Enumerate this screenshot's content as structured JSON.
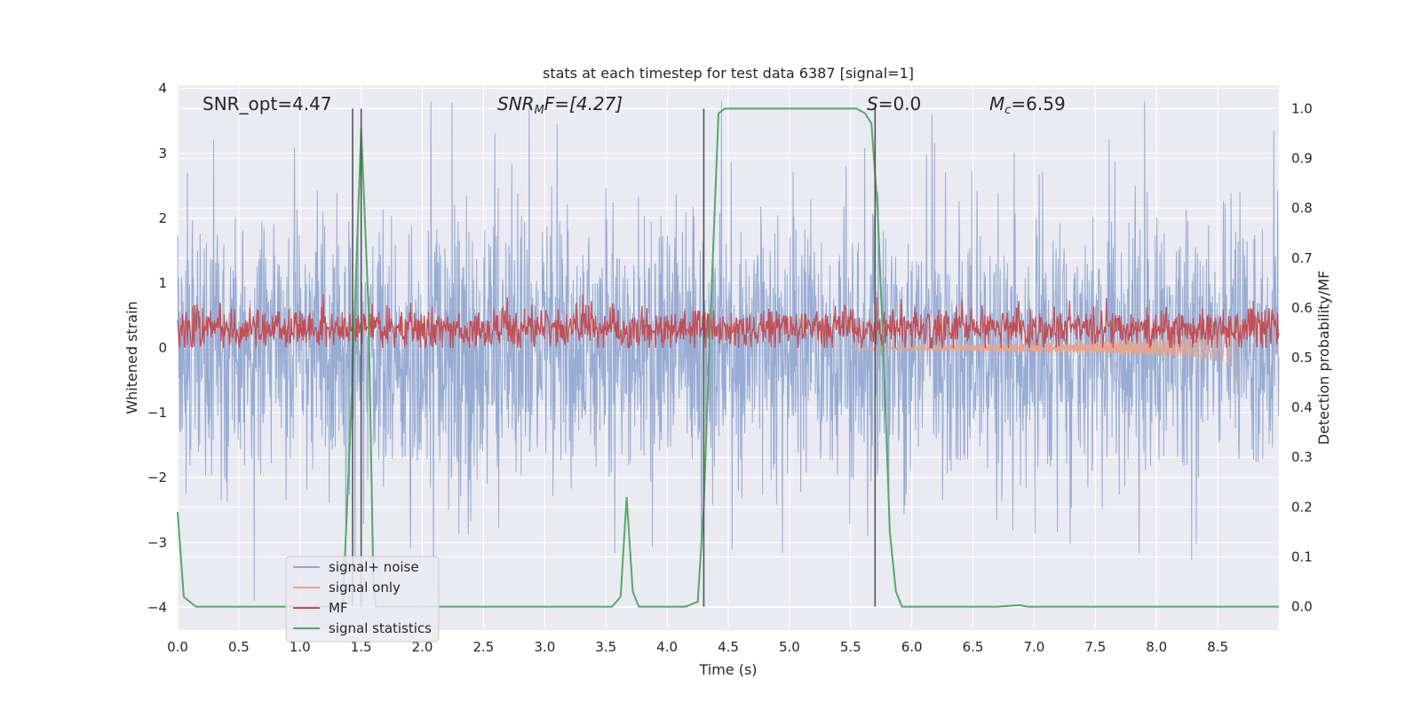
{
  "chart_data": {
    "type": "line",
    "title": "stats at each timestep for test data 6387 [signal=1]",
    "xlabel": "Time (s)",
    "ylabel_left": "Whitened strain",
    "ylabel_right": "Detection probability/MF",
    "xlim": [
      0.0,
      9.0
    ],
    "ylim_left": [
      -4.35,
      4.05
    ],
    "ylim_right": [
      -0.047,
      1.047
    ],
    "xticks": [
      "0.0",
      "0.5",
      "1.0",
      "1.5",
      "2.0",
      "2.5",
      "3.0",
      "3.5",
      "4.0",
      "4.5",
      "5.0",
      "5.5",
      "6.0",
      "6.5",
      "7.0",
      "7.5",
      "8.0",
      "8.5"
    ],
    "yticks_left": [
      "4",
      "3",
      "2",
      "1",
      "0",
      "−1",
      "−2",
      "−3",
      "−4"
    ],
    "yticks_right": [
      "1.0",
      "0.9",
      "0.8",
      "0.7",
      "0.6",
      "0.5",
      "0.4",
      "0.3",
      "0.2",
      "0.1",
      "0.0"
    ],
    "grid": true,
    "legend_position": "lower-left",
    "series": [
      {
        "name": "signal+ noise",
        "color": "#92a8d1",
        "axis": "left",
        "description": "whitened strain noise, amplitude roughly ±2 with spikes to ±3.8"
      },
      {
        "name": "signal only",
        "color": "#e8a58c",
        "axis": "left",
        "x": [
          5.5,
          6.0,
          6.5,
          7.0,
          7.5,
          8.0,
          8.3,
          8.5,
          8.62,
          8.66
        ],
        "envelope": [
          0.02,
          0.03,
          0.05,
          0.07,
          0.09,
          0.12,
          0.15,
          0.2,
          0.3,
          0.55
        ]
      },
      {
        "name": "MF",
        "color": "#c44e52",
        "axis": "left",
        "description": "matched filter output, band roughly 0 to 0.9"
      },
      {
        "name": "signal statistics",
        "color": "#55a868",
        "axis": "right",
        "x": [
          0.0,
          0.05,
          0.15,
          0.3,
          0.6,
          1.0,
          1.2,
          1.35,
          1.42,
          1.5,
          1.56,
          1.6,
          1.62,
          1.7,
          2.0,
          2.5,
          3.0,
          3.4,
          3.55,
          3.62,
          3.67,
          3.72,
          3.77,
          3.8,
          3.9,
          4.0,
          4.15,
          4.25,
          4.3,
          4.35,
          4.42,
          4.47,
          4.55,
          5.0,
          5.3,
          5.55,
          5.62,
          5.67,
          5.72,
          5.77,
          5.82,
          5.87,
          5.92,
          6.0,
          6.5,
          6.7,
          6.88,
          6.95,
          7.5,
          8.0,
          8.5,
          9.0
        ],
        "y": [
          0.19,
          0.02,
          0.0,
          0.0,
          0.0,
          0.0,
          0.0,
          0.0,
          0.4,
          0.96,
          0.6,
          0.05,
          0.0,
          0.0,
          0.0,
          0.0,
          0.0,
          0.0,
          0.0,
          0.02,
          0.22,
          0.03,
          0.0,
          0.0,
          0.0,
          0.0,
          0.0,
          0.01,
          0.2,
          0.55,
          0.99,
          1.0,
          1.0,
          1.0,
          1.0,
          1.0,
          0.99,
          0.97,
          0.8,
          0.5,
          0.15,
          0.03,
          0.0,
          0.0,
          0.0,
          0.0,
          0.003,
          0.0,
          0.0,
          0.0,
          0.0,
          0.0
        ]
      },
      {
        "name": "detection markers",
        "color": "#555555",
        "axis": "right",
        "x": [
          1.43,
          1.5,
          4.3,
          5.7
        ]
      }
    ],
    "annotations": [
      {
        "text": "SNR_opt=4.47"
      },
      {
        "text": "F=[4.27]",
        "math_prefix": "SNR",
        "math_sub": "M"
      },
      {
        "text": "=0.0",
        "math_prefix": "S"
      },
      {
        "text": "=6.59",
        "math_prefix": "M",
        "math_sub": "c"
      }
    ]
  }
}
